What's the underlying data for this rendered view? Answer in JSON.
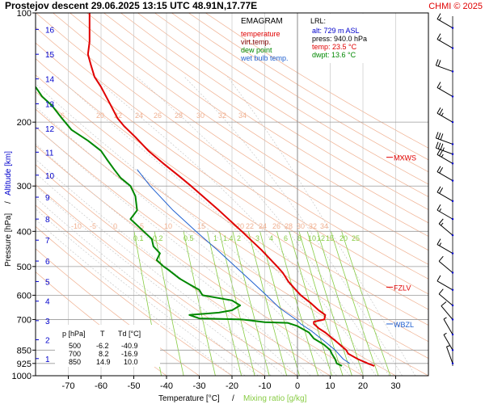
{
  "header": {
    "title": "Prostejov   descent   29.06.2025 13:15 UTC  48.91N,17.77E",
    "credit": "CHMI © 2025"
  },
  "colors": {
    "temperature": "#e00000",
    "virt_temp": "#b00000",
    "dew_point": "#008800",
    "wet_bulb": "#2060d0",
    "altitude": "#0000cc",
    "isotherm": "#808080",
    "dry_adiabat": "#f0b090",
    "mixing_ratio": "#88cc44",
    "moist_adiabat": "#c0c0c0"
  },
  "legend": {
    "title": "EMAGRAM",
    "items": [
      {
        "label": "temperature",
        "color": "#e00000"
      },
      {
        "label": "virt.temp.",
        "color": "#800000"
      },
      {
        "label": "dew point",
        "color": "#008800"
      },
      {
        "label": "wet bulb temp.",
        "color": "#2060d0"
      }
    ]
  },
  "lrl": {
    "title": "LRL:",
    "alt": "alt: 729 m ASL",
    "press": "press: 940.0 hPa",
    "temp": "temp: 23.5 °C",
    "dwpt": "dwpt: 13.6 °C"
  },
  "table": {
    "headers": [
      "p [hPa]",
      "T",
      "Td [°C]"
    ],
    "rows": [
      [
        "500",
        "-6.2",
        "-40.9"
      ],
      [
        "700",
        "8.2",
        "-16.9"
      ],
      [
        "850",
        "14.9",
        "10.0"
      ]
    ]
  },
  "levels": [
    {
      "name": "MXWS",
      "p": 250
    },
    {
      "name": "FZLV",
      "p": 570
    },
    {
      "name": "WBZL",
      "p": 720
    }
  ],
  "axes": {
    "ylabel_pressure": "Pressure [hPa]",
    "ylabel_sep": "/",
    "ylabel_altitude": "Altitude [km]",
    "xlabel_temp": "Temperature [°C]",
    "xlabel_sep": "/",
    "xlabel_mix": "Mixing ratio [g/kg]"
  },
  "chart_data": {
    "type": "line",
    "title": "Prostejov   descent   29.06.2025 13:15 UTC  48.91N,17.77E",
    "xlabel": "Temperature [°C] / Mixing ratio [g/kg]",
    "ylabel": "Pressure [hPa] / Altitude [km]",
    "xlim": [
      -80,
      40
    ],
    "ylim": [
      1000,
      100
    ],
    "y_scale": "log",
    "x_ticks": [
      -70,
      -60,
      -50,
      -40,
      -30,
      -20,
      -10,
      0,
      10,
      20,
      30
    ],
    "y_ticks": [
      100,
      200,
      300,
      400,
      500,
      600,
      700,
      850,
      925,
      1000
    ],
    "altitude_ticks": [
      {
        "km": 1,
        "p": 897
      },
      {
        "km": 2,
        "p": 796
      },
      {
        "km": 3,
        "p": 705
      },
      {
        "km": 4,
        "p": 623
      },
      {
        "km": 5,
        "p": 550
      },
      {
        "km": 6,
        "p": 483
      },
      {
        "km": 7,
        "p": 423
      },
      {
        "km": 8,
        "p": 370
      },
      {
        "km": 9,
        "p": 322
      },
      {
        "km": 10,
        "p": 280
      },
      {
        "km": 11,
        "p": 242
      },
      {
        "km": 12,
        "p": 208
      },
      {
        "km": 13,
        "p": 178
      },
      {
        "km": 14,
        "p": 152
      },
      {
        "km": 15,
        "p": 130
      },
      {
        "km": 16,
        "p": 111
      }
    ],
    "dry_adiabat_labels": {
      "p": 200,
      "values": [
        "6",
        "20",
        "22",
        "24",
        "26",
        "28",
        "30",
        "32",
        "34"
      ]
    },
    "moist_adiabat_labels": {
      "p": 400,
      "values": [
        "-10",
        "-5",
        "0",
        "5",
        "10",
        "15",
        "20",
        "22",
        "24",
        "26",
        "28",
        "30",
        "32",
        "34"
      ]
    },
    "mixing_ratio_labels": {
      "p": 400,
      "values": [
        "0.1",
        "0.2",
        "0.5",
        "1",
        "1.4",
        "2",
        "3",
        "4",
        "6",
        "8",
        "10",
        "12",
        "15",
        "20",
        "25"
      ]
    },
    "series": [
      {
        "name": "temperature",
        "color": "#e00000",
        "points": [
          [
            940,
            23.5
          ],
          [
            925,
            21.5
          ],
          [
            900,
            18.5
          ],
          [
            870,
            15.5
          ],
          [
            850,
            14.9
          ],
          [
            800,
            11.5
          ],
          [
            760,
            8.5
          ],
          [
            740,
            6.5
          ],
          [
            720,
            5.0
          ],
          [
            710,
            5.0
          ],
          [
            700,
            8.2
          ],
          [
            680,
            8.5
          ],
          [
            660,
            6.5
          ],
          [
            630,
            4.0
          ],
          [
            600,
            1.0
          ],
          [
            580,
            -0.5
          ],
          [
            550,
            -2.8
          ],
          [
            520,
            -4.5
          ],
          [
            500,
            -6.2
          ],
          [
            450,
            -11.0
          ],
          [
            400,
            -17.0
          ],
          [
            350,
            -24.0
          ],
          [
            300,
            -32.5
          ],
          [
            280,
            -36.5
          ],
          [
            260,
            -41.0
          ],
          [
            240,
            -45.5
          ],
          [
            220,
            -49.5
          ],
          [
            205,
            -53.0
          ],
          [
            195,
            -55.0
          ],
          [
            180,
            -57.0
          ],
          [
            160,
            -60.0
          ],
          [
            150,
            -62.0
          ],
          [
            140,
            -63.0
          ],
          [
            130,
            -64.0
          ],
          [
            120,
            -63.5
          ],
          [
            110,
            -63.5
          ],
          [
            100,
            -63.5
          ]
        ]
      },
      {
        "name": "dew point",
        "color": "#008800",
        "points": [
          [
            940,
            13.6
          ],
          [
            925,
            12.0
          ],
          [
            900,
            11.5
          ],
          [
            870,
            10.5
          ],
          [
            850,
            10.0
          ],
          [
            820,
            8.0
          ],
          [
            790,
            5.0
          ],
          [
            760,
            3.5
          ],
          [
            730,
            0.0
          ],
          [
            715,
            -3.0
          ],
          [
            712,
            -10.0
          ],
          [
            705,
            -14.0
          ],
          [
            700,
            -16.9
          ],
          [
            695,
            -30.0
          ],
          [
            680,
            -33.0
          ],
          [
            670,
            -24.0
          ],
          [
            660,
            -20.0
          ],
          [
            640,
            -17.5
          ],
          [
            620,
            -20.0
          ],
          [
            600,
            -29.0
          ],
          [
            580,
            -30.0
          ],
          [
            560,
            -33.0
          ],
          [
            540,
            -36.0
          ],
          [
            510,
            -39.5
          ],
          [
            500,
            -40.9
          ],
          [
            480,
            -43.0
          ],
          [
            460,
            -42.0
          ],
          [
            440,
            -44.0
          ],
          [
            420,
            -44.5
          ],
          [
            400,
            -47.0
          ],
          [
            370,
            -51.0
          ],
          [
            350,
            -49.0
          ],
          [
            320,
            -49.5
          ],
          [
            300,
            -51.0
          ],
          [
            285,
            -54.0
          ],
          [
            270,
            -56.0
          ],
          [
            255,
            -58.0
          ],
          [
            240,
            -60.0
          ],
          [
            225,
            -64.0
          ],
          [
            210,
            -69.0
          ],
          [
            195,
            -72.0
          ],
          [
            180,
            -75.0
          ],
          [
            170,
            -78.0
          ],
          [
            160,
            -80.0
          ]
        ]
      },
      {
        "name": "wet bulb temp.",
        "color": "#2060d0",
        "points": [
          [
            925,
            16.0
          ],
          [
            900,
            14.0
          ],
          [
            850,
            11.5
          ],
          [
            800,
            8.0
          ],
          [
            750,
            4.0
          ],
          [
            720,
            1.0
          ],
          [
            700,
            -0.5
          ],
          [
            650,
            -5.5
          ],
          [
            600,
            -9.5
          ],
          [
            550,
            -14.0
          ],
          [
            500,
            -19.0
          ],
          [
            450,
            -24.5
          ],
          [
            400,
            -31.0
          ],
          [
            350,
            -38.0
          ],
          [
            300,
            -45.0
          ],
          [
            270,
            -49.0
          ]
        ]
      }
    ],
    "wind_barbs": [
      {
        "p": 110,
        "dir": 300,
        "spd": 15
      },
      {
        "p": 125,
        "dir": 300,
        "spd": 15
      },
      {
        "p": 145,
        "dir": 290,
        "spd": 20
      },
      {
        "p": 170,
        "dir": 300,
        "spd": 15
      },
      {
        "p": 200,
        "dir": 300,
        "spd": 25
      },
      {
        "p": 230,
        "dir": 290,
        "spd": 30
      },
      {
        "p": 245,
        "dir": 290,
        "spd": 35
      },
      {
        "p": 260,
        "dir": 300,
        "spd": 25
      },
      {
        "p": 290,
        "dir": 300,
        "spd": 20
      },
      {
        "p": 330,
        "dir": 300,
        "spd": 20
      },
      {
        "p": 370,
        "dir": 300,
        "spd": 15
      },
      {
        "p": 410,
        "dir": 310,
        "spd": 15
      },
      {
        "p": 460,
        "dir": 300,
        "spd": 15
      },
      {
        "p": 520,
        "dir": 310,
        "spd": 10
      },
      {
        "p": 580,
        "dir": 300,
        "spd": 10
      },
      {
        "p": 640,
        "dir": 310,
        "spd": 10
      },
      {
        "p": 700,
        "dir": 320,
        "spd": 10
      },
      {
        "p": 770,
        "dir": 330,
        "spd": 5
      },
      {
        "p": 850,
        "dir": 330,
        "spd": 5
      },
      {
        "p": 925,
        "dir": 340,
        "spd": 5
      }
    ]
  }
}
